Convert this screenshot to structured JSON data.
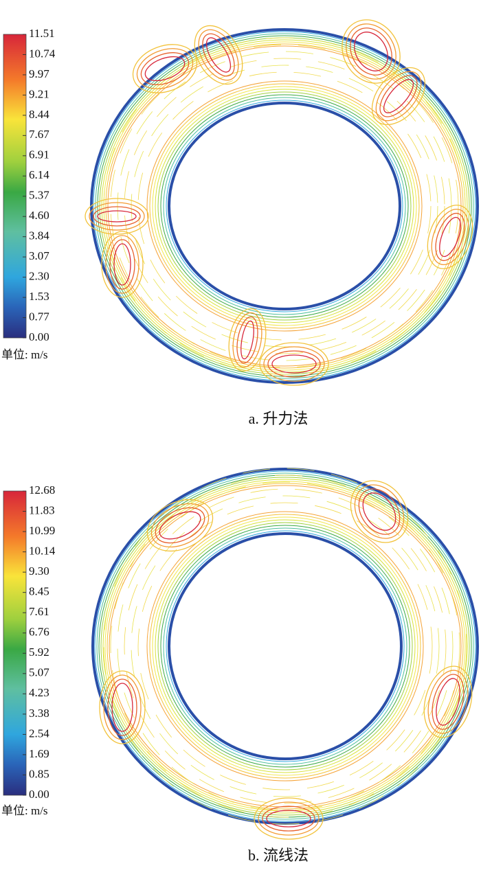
{
  "panels": [
    {
      "colorbar_ticks": [
        "11.51",
        "10.74",
        "9.97",
        "9.21",
        "8.44",
        "7.67",
        "6.91",
        "6.14",
        "5.37",
        "4.60",
        "3.84",
        "3.07",
        "2.30",
        "1.53",
        "0.77",
        "0.00"
      ],
      "unit": "单位: m/s",
      "caption": "a. 升力法"
    },
    {
      "colorbar_ticks": [
        "12.68",
        "11.83",
        "10.99",
        "10.14",
        "9.30",
        "8.45",
        "7.61",
        "6.76",
        "5.92",
        "5.07",
        "4.23",
        "3.38",
        "2.54",
        "1.69",
        "0.85",
        "0.00"
      ],
      "unit": "单位: m/s",
      "caption": "b. 流线法"
    }
  ]
}
